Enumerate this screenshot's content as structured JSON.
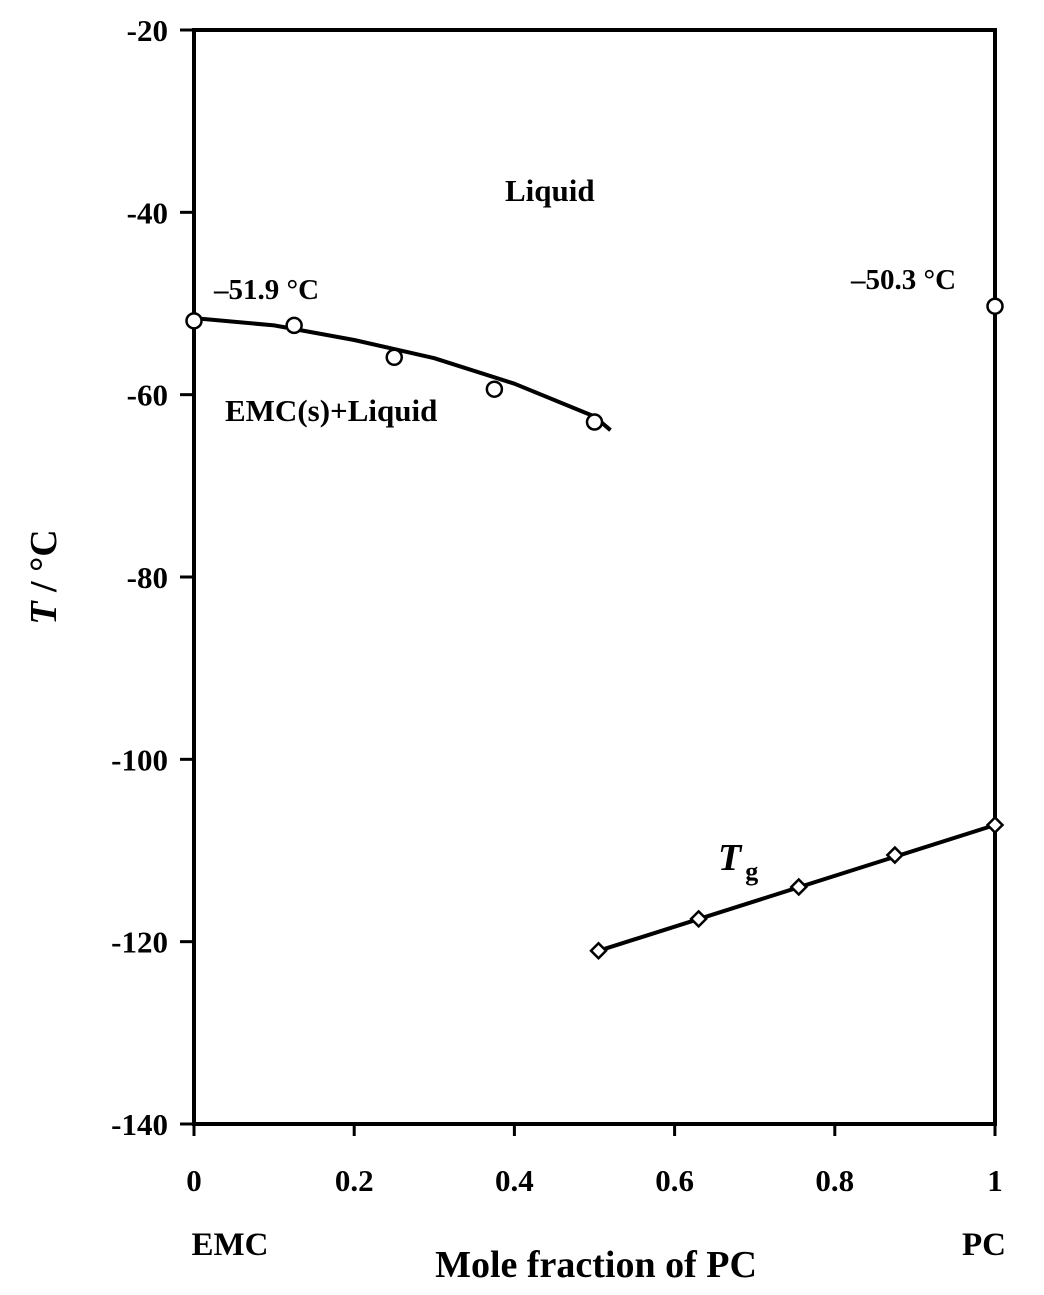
{
  "chart_data": {
    "type": "line",
    "xlabel": "Mole fraction of PC",
    "ylabel_italic": "T",
    "ylabel_rest": " / °C",
    "xlim": [
      0,
      1
    ],
    "ylim": [
      -140,
      -20
    ],
    "x_ticks": [
      0,
      0.2,
      0.4,
      0.6,
      0.8,
      1
    ],
    "x_tick_labels": [
      "0",
      "0.2",
      "0.4",
      "0.6",
      "0.8",
      "1"
    ],
    "y_ticks": [
      -20,
      -40,
      -60,
      -80,
      -100,
      -120,
      -140
    ],
    "y_tick_labels": [
      "-20",
      "-40",
      "-60",
      "-80",
      "-100",
      "-120",
      "-140"
    ],
    "x_end_labels": {
      "left": "EMC",
      "right": "PC"
    },
    "grid": false,
    "series": [
      {
        "marker": "circle",
        "points": [
          [
            0,
            -51.9
          ],
          [
            0.125,
            -52.4
          ],
          [
            0.25,
            -55.9
          ],
          [
            0.375,
            -59.4
          ],
          [
            0.5,
            -63.0
          ]
        ],
        "fit_curve": [
          [
            0,
            -51.6
          ],
          [
            0.1,
            -52.4
          ],
          [
            0.2,
            -54.0
          ],
          [
            0.3,
            -56.0
          ],
          [
            0.4,
            -58.8
          ],
          [
            0.5,
            -62.4
          ],
          [
            0.52,
            -63.9
          ]
        ]
      },
      {
        "marker": "circle",
        "points": [
          [
            1.0,
            -50.3
          ]
        ]
      },
      {
        "marker": "diamond",
        "points": [
          [
            0.505,
            -121.0
          ],
          [
            0.63,
            -117.5
          ],
          [
            0.755,
            -114.0
          ],
          [
            0.875,
            -110.5
          ],
          [
            1.0,
            -107.2
          ]
        ],
        "fit_curve": [
          [
            0.505,
            -121.0
          ],
          [
            1.0,
            -107.2
          ]
        ]
      }
    ],
    "annotations": {
      "liquid": "Liquid",
      "emc_liquid": "EMC(s)+Liquid",
      "emc_melt": "–51.9 °C",
      "pc_melt": "–50.3 °C",
      "tg_main": "T",
      "tg_sub": "g"
    }
  }
}
